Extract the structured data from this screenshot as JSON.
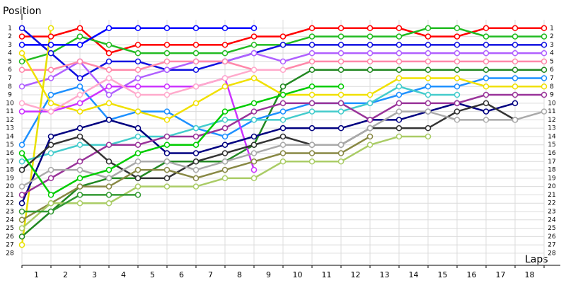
{
  "chart_data": {
    "type": "line",
    "y_label": "Position",
    "x_label": "Laps",
    "x": [
      0,
      1,
      2,
      3,
      4,
      5,
      6,
      7,
      8,
      9,
      10,
      11,
      12,
      13,
      14,
      15,
      16,
      17,
      18
    ],
    "xlim": [
      0,
      18
    ],
    "xticks": [
      {
        "value": 0.5,
        "label": "1"
      },
      {
        "value": 1.5,
        "label": "2"
      },
      {
        "value": 2.5,
        "label": "3"
      },
      {
        "value": 3.5,
        "label": "4"
      },
      {
        "value": 4.5,
        "label": "5"
      },
      {
        "value": 5.5,
        "label": "6"
      },
      {
        "value": 6.5,
        "label": "7"
      },
      {
        "value": 7.5,
        "label": "8"
      },
      {
        "value": 8.5,
        "label": "9"
      },
      {
        "value": 9.5,
        "label": "10"
      },
      {
        "value": 10.5,
        "label": "11"
      },
      {
        "value": 11.5,
        "label": "12"
      },
      {
        "value": 12.5,
        "label": "13"
      },
      {
        "value": 13.5,
        "label": "14"
      },
      {
        "value": 14.5,
        "label": "15"
      },
      {
        "value": 15.5,
        "label": "16"
      },
      {
        "value": 16.5,
        "label": "17"
      },
      {
        "value": 17.5,
        "label": "18"
      }
    ],
    "ylim": [
      0,
      29.45
    ],
    "inverted": true,
    "yticks": [
      1,
      2,
      3,
      4,
      5,
      6,
      7,
      8,
      9,
      10,
      11,
      12,
      13,
      14,
      15,
      16,
      17,
      18,
      19,
      20,
      21,
      22,
      23,
      24,
      25,
      26,
      27,
      28
    ],
    "grid": true,
    "series": [
      {
        "color": "#ff0000",
        "values": [
          2,
          2,
          1,
          4,
          3,
          3,
          3,
          3,
          2,
          2,
          1,
          1,
          1,
          1,
          2,
          2,
          1,
          1,
          1
        ]
      },
      {
        "color": "#22bb22",
        "values": [
          5,
          4,
          2,
          3,
          4,
          4,
          4,
          4,
          3,
          3,
          2,
          2,
          2,
          2,
          1,
          1,
          2,
          2,
          2
        ]
      },
      {
        "color": "#0000ff",
        "values": [
          3,
          3,
          3,
          1,
          1,
          1,
          1,
          1,
          1,
          null,
          null,
          null,
          null,
          null,
          null,
          null,
          null,
          null,
          null
        ]
      },
      {
        "color": "#1010e0",
        "values": [
          1,
          4,
          7,
          5,
          5,
          6,
          6,
          5,
          4,
          3,
          3,
          3,
          3,
          3,
          3,
          3,
          3,
          3,
          3
        ]
      },
      {
        "color": "#b060ff",
        "values": [
          8,
          7,
          5,
          9,
          7,
          6,
          5,
          5,
          4,
          5,
          4,
          4,
          4,
          4,
          4,
          4,
          4,
          4,
          4
        ]
      },
      {
        "color": "#ff88aa",
        "values": [
          6,
          6,
          5,
          6,
          6,
          5,
          5,
          5,
          6,
          6,
          5,
          5,
          5,
          5,
          5,
          5,
          5,
          5,
          5
        ]
      },
      {
        "color": "#228822",
        "values": [
          26,
          23,
          20,
          19,
          19,
          17,
          17,
          17,
          15,
          8,
          6,
          6,
          6,
          6,
          6,
          6,
          6,
          6,
          6
        ]
      },
      {
        "color": "#1e90ff",
        "values": [
          15,
          9,
          8,
          12,
          11,
          11,
          13,
          14,
          12,
          11,
          10,
          10,
          10,
          9,
          8,
          8,
          7,
          7,
          7
        ]
      },
      {
        "color": "#e8e000",
        "values": [
          27,
          1,
          null,
          null,
          null,
          null,
          null,
          null,
          null,
          null,
          null,
          null,
          null,
          null,
          null,
          null,
          null,
          null,
          null
        ]
      },
      {
        "color": "#f0e000",
        "values": [
          4,
          10,
          11,
          10,
          11,
          12,
          10,
          8,
          7,
          9,
          9,
          9,
          9,
          7,
          7,
          7,
          8,
          8,
          8
        ]
      },
      {
        "color": "#cc33ff",
        "values": [
          11,
          11,
          10,
          8,
          8,
          8,
          8,
          7,
          18,
          null,
          null,
          null,
          null,
          null,
          null,
          null,
          null,
          null,
          null
        ]
      },
      {
        "color": "#44cccc",
        "values": [
          17,
          16,
          15,
          15,
          14,
          14,
          13,
          12,
          12,
          12,
          11,
          11,
          10,
          8,
          9,
          9,
          null,
          null,
          null
        ]
      },
      {
        "color": "#000080",
        "values": [
          22,
          14,
          13,
          12,
          13,
          16,
          16,
          15,
          14,
          13,
          13,
          13,
          12,
          12,
          11,
          10,
          11,
          10,
          null
        ]
      },
      {
        "color": "#993399",
        "values": [
          21,
          19,
          17,
          15,
          15,
          14,
          14,
          13,
          11,
          10,
          10,
          10,
          12,
          10,
          10,
          10,
          9,
          9,
          9
        ]
      },
      {
        "color": "#333333",
        "values": [
          18,
          15,
          14,
          17,
          19,
          19,
          17,
          16,
          15,
          14,
          15,
          15,
          13,
          13,
          13,
          11,
          10,
          12,
          null
        ]
      },
      {
        "color": "#888844",
        "values": [
          24,
          22,
          20,
          20,
          18,
          18,
          19,
          18,
          17,
          16,
          16,
          16,
          14,
          null,
          null,
          null,
          null,
          null,
          null
        ]
      },
      {
        "color": "#aaaaaa",
        "values": [
          20,
          18,
          18,
          19,
          17,
          17,
          18,
          17,
          16,
          15,
          15,
          15,
          13,
          11,
          11,
          12,
          12,
          12,
          11
        ]
      },
      {
        "color": "#aacc66",
        "values": [
          25,
          22,
          22,
          22,
          20,
          20,
          20,
          19,
          19,
          17,
          17,
          17,
          15,
          14,
          14,
          null,
          null,
          null,
          null
        ]
      },
      {
        "color": "#00cc00",
        "values": [
          16,
          21,
          19,
          18,
          16,
          15,
          15,
          11,
          10,
          9,
          8,
          8,
          null,
          null,
          null,
          null,
          null,
          null,
          null
        ]
      },
      {
        "color": "#339933",
        "values": [
          23,
          23,
          21,
          21,
          21,
          null,
          null,
          null,
          null,
          null,
          null,
          null,
          null,
          null,
          null,
          null,
          null,
          null,
          null
        ]
      },
      {
        "color": "#ffaacc",
        "values": [
          10,
          11,
          9,
          7,
          9,
          9,
          8,
          7,
          6,
          6,
          null,
          null,
          null,
          null,
          null,
          null,
          null,
          null,
          null
        ]
      }
    ]
  }
}
